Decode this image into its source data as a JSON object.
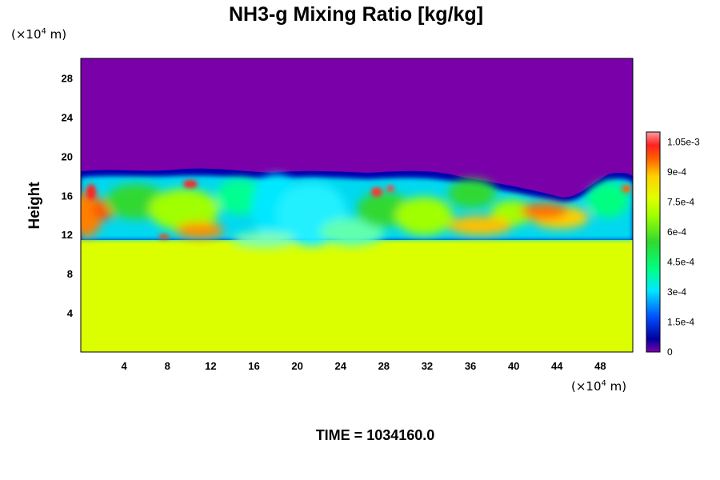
{
  "chart_data": {
    "type": "heatmap",
    "title": "NH3-g Mixing Ratio [kg/kg]",
    "xlabel": "",
    "ylabel": "Height",
    "x_unit": "(×10⁴ m)",
    "y_unit": "(×10⁴ m)",
    "xlim": [
      0,
      51
    ],
    "ylim": [
      0,
      30
    ],
    "x_ticks": [
      4,
      8,
      12,
      16,
      20,
      24,
      28,
      32,
      36,
      40,
      44,
      48
    ],
    "y_ticks": [
      4,
      8,
      12,
      16,
      20,
      24,
      28
    ],
    "colorbar": {
      "range": [
        0,
        0.0011
      ],
      "ticks": [
        0,
        0.00015,
        0.0003,
        0.00045,
        0.0006,
        0.00075,
        0.0009,
        0.00105
      ],
      "tick_labels": [
        "0",
        "1.5e-4",
        "3e-4",
        "4.5e-4",
        "6e-4",
        "7.5e-4",
        "9e-4",
        "1.05e-3"
      ]
    },
    "field_summary": {
      "background_value": 0.00078,
      "upper_region_value": 0,
      "mixing_layer_top": 17.5,
      "mixing_layer_bottom": 11
    },
    "time_label": "TIME = 1034160.0"
  },
  "colors": {
    "zero": "#7a00aa",
    "background_field": "#dcff00",
    "max": "#ff9aa0"
  }
}
